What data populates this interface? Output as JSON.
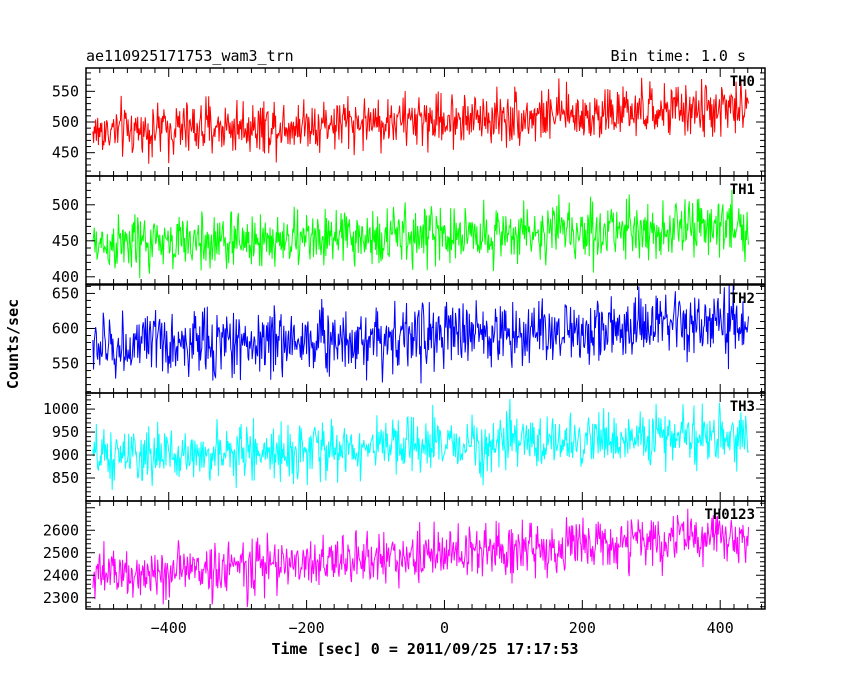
{
  "header": {
    "title": "ae110925171753_wam3_trn",
    "bin_time": "Bin time: 1.0 s"
  },
  "chart_data": {
    "type": "line",
    "title": "ae110925171753_wam3_trn",
    "subtitle": "Bin time: 1.0 s",
    "xlabel": "Time [sec] 0 = 2011/09/25 17:17:53",
    "ylabel": "Counts/sec",
    "xlim": [
      -520,
      465
    ],
    "x_range": [
      -510,
      441
    ],
    "bin_seconds": 1,
    "x_ticks": [
      -400,
      -200,
      0,
      200,
      400
    ],
    "x_tick_labels": [
      "−400",
      "−200",
      "0",
      "200",
      "400"
    ],
    "grid": false,
    "series": [
      {
        "name": "TH0",
        "color": "#ff0000",
        "ylim": [
          412,
          588
        ],
        "y_ticks": [
          450,
          500,
          550
        ],
        "y_tick_labels": [
          "450",
          "500",
          "550"
        ],
        "trend": {
          "start": 484,
          "end": 522
        },
        "noise_sd": 22
      },
      {
        "name": "TH1",
        "color": "#00ff00",
        "ylim": [
          390,
          540
        ],
        "y_ticks": [
          400,
          450,
          500
        ],
        "y_tick_labels": [
          "400",
          "450",
          "500"
        ],
        "trend": {
          "start": 444,
          "end": 470
        },
        "noise_sd": 20
      },
      {
        "name": "TH2",
        "color": "#0000ff",
        "ylim": [
          508,
          662
        ],
        "y_ticks": [
          550,
          600,
          650
        ],
        "y_tick_labels": [
          "550",
          "600",
          "650"
        ],
        "trend": {
          "start": 573,
          "end": 606
        },
        "noise_sd": 24
      },
      {
        "name": "TH3",
        "color": "#00ffff",
        "ylim": [
          800,
          1035
        ],
        "y_ticks": [
          850,
          900,
          950,
          1000
        ],
        "y_tick_labels": [
          "850",
          "900",
          "950",
          "1000"
        ],
        "trend": {
          "start": 893,
          "end": 945
        },
        "noise_sd": 30
      },
      {
        "name": "TH0123",
        "color": "#ff00ff",
        "ylim": [
          2250,
          2730
        ],
        "y_ticks": [
          2300,
          2400,
          2500,
          2600
        ],
        "y_tick_labels": [
          "2300",
          "2400",
          "2500",
          "2600"
        ],
        "trend": {
          "start": 2395,
          "end": 2580
        },
        "noise_sd": 60
      }
    ]
  }
}
